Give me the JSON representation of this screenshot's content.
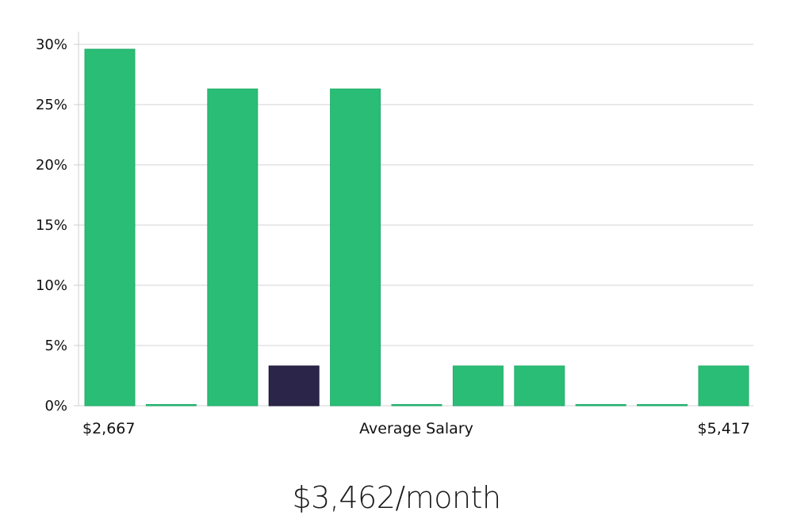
{
  "headline": "$3,462/month",
  "colors": {
    "bar": "#2abd76",
    "highlight": "#2b2649",
    "grid": "#e2e2e6",
    "axis": "#cfcfd4"
  },
  "chart_data": {
    "type": "bar",
    "title": "",
    "xlabel": "Average Salary",
    "ylabel": "",
    "x_min_label": "$2,667",
    "x_max_label": "$5,417",
    "ylim": [
      0,
      30
    ],
    "yticks": [
      0,
      5,
      10,
      15,
      20,
      25,
      30
    ],
    "ytick_labels": [
      "0%",
      "5%",
      "10%",
      "15%",
      "20%",
      "25%",
      "30%"
    ],
    "values": [
      29.6,
      0,
      26.3,
      3.3,
      26.3,
      0,
      3.3,
      3.3,
      0,
      0,
      3.3
    ],
    "highlight_index": 3,
    "grid": true,
    "legend": "none"
  }
}
